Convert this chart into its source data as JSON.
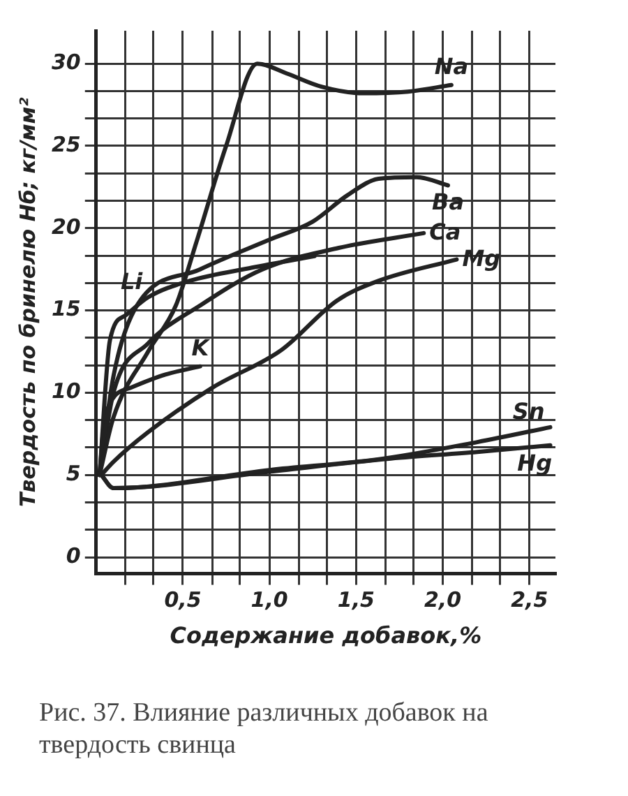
{
  "chart_data": {
    "type": "line",
    "xlabel": "Содержание добавок,%",
    "ylabel": "Твердость по бринелю Нб; кг/мм²",
    "annotations": [
      "Рис. 37. Влияние различных добавок на твердость свинца"
    ],
    "xlim": [
      0,
      2.65
    ],
    "ylim": [
      -1,
      32
    ],
    "xticks": [
      {
        "value": 0.17,
        "label": null
      },
      {
        "value": 0.33,
        "label": null
      },
      {
        "value": 0.5,
        "label": "0,5"
      },
      {
        "value": 0.67,
        "label": null
      },
      {
        "value": 0.83,
        "label": null
      },
      {
        "value": 1.0,
        "label": "1,0"
      },
      {
        "value": 1.17,
        "label": null
      },
      {
        "value": 1.33,
        "label": null
      },
      {
        "value": 1.5,
        "label": "1,5"
      },
      {
        "value": 1.67,
        "label": null
      },
      {
        "value": 1.83,
        "label": null
      },
      {
        "value": 2.0,
        "label": "2,0"
      },
      {
        "value": 2.17,
        "label": null
      },
      {
        "value": 2.33,
        "label": null
      },
      {
        "value": 2.5,
        "label": "2,5"
      }
    ],
    "yticks": [
      0,
      {
        "value": 1.67,
        "label": null
      },
      {
        "value": 3.33,
        "label": null
      },
      5,
      {
        "value": 6.67,
        "label": null
      },
      {
        "value": 8.33,
        "label": null
      },
      10,
      {
        "value": 11.67,
        "label": null
      },
      {
        "value": 13.33,
        "label": null
      },
      15,
      {
        "value": 16.67,
        "label": null
      },
      {
        "value": 18.33,
        "label": null
      },
      20,
      {
        "value": 21.67,
        "label": null
      },
      {
        "value": 23.33,
        "label": null
      },
      25,
      {
        "value": 26.67,
        "label": null
      },
      {
        "value": 28.33,
        "label": null
      },
      30
    ],
    "grid": true,
    "legend": false,
    "marker": "none",
    "line_style": "solid",
    "series": [
      {
        "name": "Na",
        "color": "#222222",
        "x": [
          0.02,
          0.1,
          0.3,
          0.46,
          0.58,
          0.75,
          0.93,
          1.1,
          1.3,
          1.54,
          1.8,
          2.05
        ],
        "values": [
          5,
          8.5,
          12.5,
          15.3,
          19.2,
          25,
          30,
          29.4,
          28.6,
          28.2,
          28.3,
          28.7
        ]
      },
      {
        "name": "Ba",
        "color": "#222222",
        "x": [
          0.02,
          0.1,
          0.23,
          0.6,
          1.0,
          1.25,
          1.45,
          1.63,
          1.85,
          2.03
        ],
        "values": [
          5,
          11,
          15.2,
          17.5,
          19.3,
          20.4,
          22,
          23,
          23.1,
          22.6
        ]
      },
      {
        "name": "Ca",
        "color": "#222222",
        "x": [
          0.02,
          0.1,
          0.3,
          0.6,
          0.96,
          1.4,
          1.89
        ],
        "values": [
          5,
          10,
          13,
          15.3,
          17.5,
          18.8,
          19.7
        ]
      },
      {
        "name": "Li",
        "color": "#222222",
        "x": [
          0.02,
          0.08,
          0.17,
          0.3,
          0.54,
          0.9,
          1.26
        ],
        "values": [
          5,
          13.2,
          14.7,
          15.8,
          16.8,
          17.6,
          18.3
        ]
      },
      {
        "name": "Mg",
        "color": "#222222",
        "x": [
          0.03,
          0.1,
          0.3,
          0.67,
          1.07,
          1.39,
          1.63,
          2.08
        ],
        "values": [
          5,
          5.8,
          7.6,
          10.3,
          12.6,
          15.6,
          16.8,
          18.1
        ]
      },
      {
        "name": "K",
        "color": "#222222",
        "x": [
          0.02,
          0.05,
          0.2,
          0.4,
          0.6
        ],
        "values": [
          5,
          8.5,
          10.3,
          11.1,
          11.6
        ]
      },
      {
        "name": "Sn",
        "color": "#222222",
        "x": [
          0.03,
          0.1,
          1.0,
          1.66,
          2.2,
          2.62
        ],
        "values": [
          5,
          4.2,
          5.3,
          6.0,
          7.0,
          7.9
        ]
      },
      {
        "name": "Hg",
        "color": "#222222",
        "x": [
          0.03,
          0.1,
          1.0,
          1.7,
          2.2,
          2.62
        ],
        "values": [
          5,
          4.2,
          5.2,
          6.0,
          6.4,
          6.8
        ]
      }
    ]
  }
}
